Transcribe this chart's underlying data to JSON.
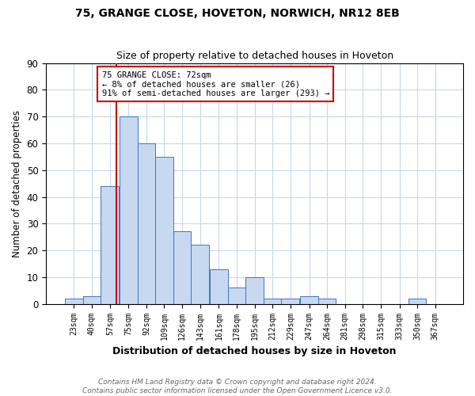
{
  "title1": "75, GRANGE CLOSE, HOVETON, NORWICH, NR12 8EB",
  "title2": "Size of property relative to detached houses in Hoveton",
  "xlabel": "Distribution of detached houses by size in Hoveton",
  "ylabel": "Number of detached properties",
  "bin_labels": [
    "23sqm",
    "40sqm",
    "57sqm",
    "75sqm",
    "92sqm",
    "109sqm",
    "126sqm",
    "143sqm",
    "161sqm",
    "178sqm",
    "195sqm",
    "212sqm",
    "229sqm",
    "247sqm",
    "264sqm",
    "281sqm",
    "298sqm",
    "315sqm",
    "333sqm",
    "350sqm",
    "367sqm"
  ],
  "bin_edges": [
    23,
    40,
    57,
    75,
    92,
    109,
    126,
    143,
    161,
    178,
    195,
    212,
    229,
    247,
    264,
    281,
    298,
    315,
    333,
    350,
    367,
    384
  ],
  "counts": [
    2,
    3,
    44,
    70,
    60,
    55,
    27,
    22,
    13,
    6,
    10,
    2,
    2,
    3,
    2,
    0,
    0,
    0,
    0,
    2,
    0
  ],
  "property_value": 72,
  "bar_color": "#c6d9f0",
  "bar_edge_color": "#4472c4",
  "vline_color": "#cc0000",
  "annotation_line1": "75 GRANGE CLOSE: 72sqm",
  "annotation_line2": "← 8% of detached houses are smaller (26)",
  "annotation_line3": "91% of semi-detached houses are larger (293) →",
  "annotation_box_edge": "#cc0000",
  "annotation_box_face": "#ffffff",
  "footer_line1": "Contains HM Land Registry data © Crown copyright and database right 2024.",
  "footer_line2": "Contains public sector information licensed under the Open Government Licence v3.0.",
  "ylim": [
    0,
    90
  ],
  "yticks": [
    0,
    10,
    20,
    30,
    40,
    50,
    60,
    70,
    80,
    90
  ],
  "background_color": "#ffffff",
  "grid_color": "#c8d8e8"
}
